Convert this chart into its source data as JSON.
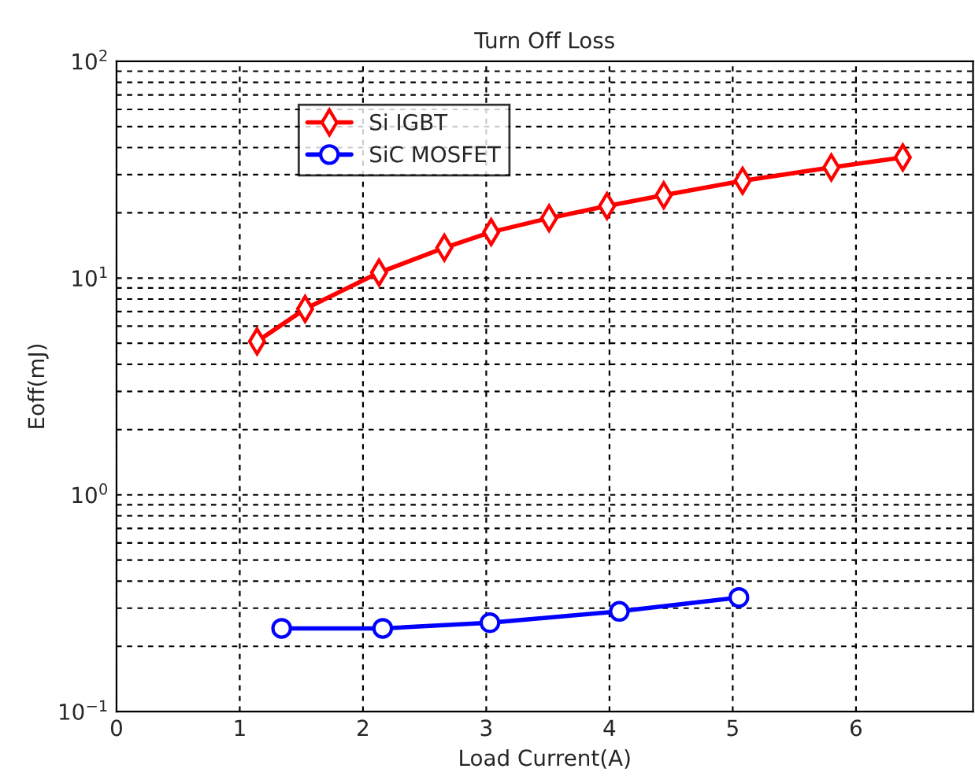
{
  "chart_data": {
    "type": "line",
    "title": "Turn Off Loss",
    "xlabel": "Load Current(A)",
    "ylabel": "Eoff(mJ)",
    "log": "y",
    "xlim": [
      0,
      6.95
    ],
    "xticks": [
      0,
      1,
      2,
      3,
      4,
      5,
      6
    ],
    "ylim": [
      0.1,
      100
    ],
    "yticks": [
      {
        "value": 0.1,
        "label": "10$^{−1}$"
      },
      {
        "value": 1,
        "label": "10$^{0}$"
      },
      {
        "value": 10,
        "label": "10$^{1}$"
      },
      {
        "value": 100,
        "label": "10$^{2}$"
      }
    ],
    "grid": true,
    "legend": "top left",
    "series": [
      {
        "name": "Si IGBT",
        "color": "#ff0000",
        "marker": "diamond",
        "x": [
          1.14,
          1.53,
          2.13,
          2.66,
          3.04,
          3.51,
          3.98,
          4.44,
          5.08,
          5.8,
          6.38
        ],
        "values": [
          5.1,
          7.2,
          10.6,
          13.8,
          16.3,
          18.9,
          21.5,
          24.1,
          28.1,
          32.4,
          36.0
        ]
      },
      {
        "name": "SiC MOSFET",
        "color": "#0000ff",
        "marker": "circle",
        "x": [
          1.34,
          2.16,
          3.03,
          4.08,
          5.05
        ],
        "values": [
          0.242,
          0.242,
          0.257,
          0.29,
          0.336
        ]
      }
    ]
  }
}
